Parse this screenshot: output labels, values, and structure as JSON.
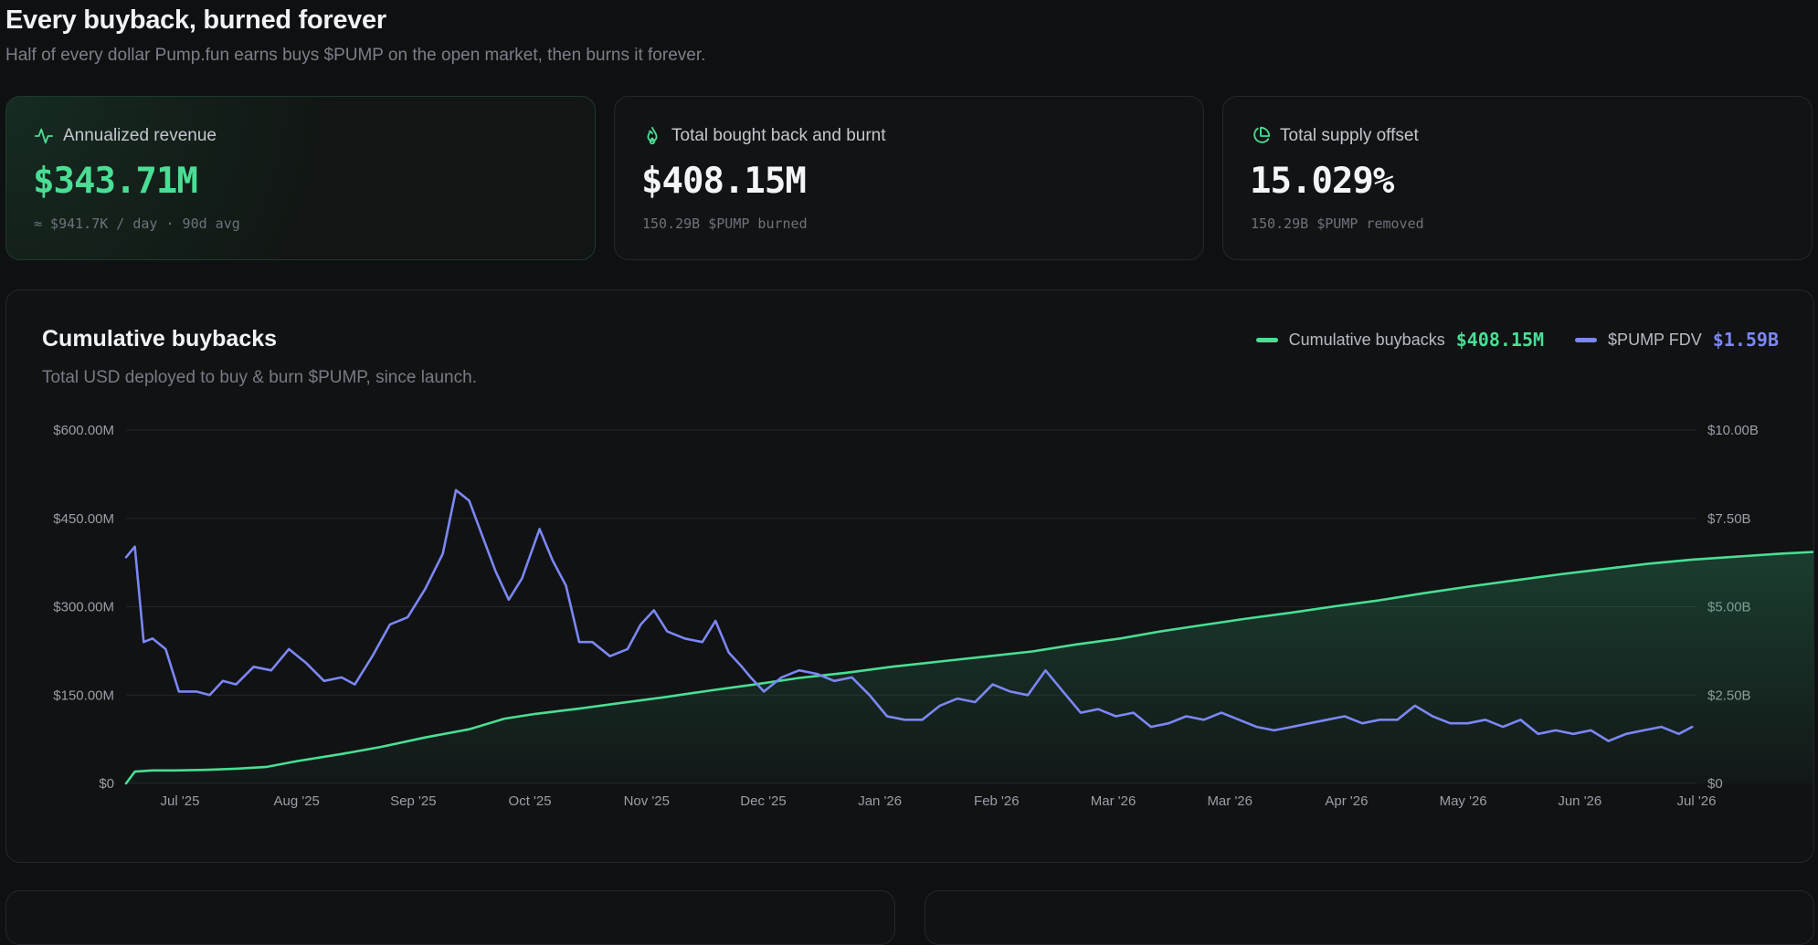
{
  "header": {
    "title": "Every buyback, burned forever",
    "subtitle": "Half of every dollar Pump.fun earns buys $PUMP on the open market, then burns it forever."
  },
  "stats": [
    {
      "label": "Annualized revenue",
      "value": "$343.71M",
      "sub": "≈ $941.7K / day · 90d avg",
      "icon": "activity-pulse-icon"
    },
    {
      "label": "Total bought back and burnt",
      "value": "$408.15M",
      "sub": "150.29B $PUMP burned",
      "icon": "flame-icon"
    },
    {
      "label": "Total supply offset",
      "value": "15.029%",
      "sub": "150.29B $PUMP removed",
      "icon": "pie-chart-icon"
    }
  ],
  "colors": {
    "accent_green": "#4ade94",
    "accent_purple": "#7c87f5",
    "background": "#0f1012",
    "card": "#111214"
  },
  "chart": {
    "title": "Cumulative buybacks",
    "subtitle": "Total USD deployed to buy & burn $PUMP, since launch.",
    "legend": [
      {
        "label": "Cumulative buybacks",
        "value": "$408.15M",
        "color": "#4ade94"
      },
      {
        "label": "$PUMP FDV",
        "value": "$1.59B",
        "color": "#7c87f5"
      }
    ]
  },
  "chart_data": {
    "type": "line",
    "title": "Cumulative buybacks",
    "subtitle": "Total USD deployed to buy & burn $PUMP, since launch.",
    "x_start": "2025-07-14",
    "x_end": "2026-07-06",
    "x_tick_labels": [
      "Jul '25",
      "Aug '25",
      "Sep '25",
      "Oct '25",
      "Nov '25",
      "Dec '25",
      "Jan '26",
      "Feb '26",
      "Mar '26",
      "Mar '26",
      "Apr '26",
      "May '26",
      "Jun '26",
      "Jul '26"
    ],
    "y_left": {
      "ticks": [
        "$0",
        "$150.00M",
        "$300.00M",
        "$450.00M",
        "$600.00M"
      ],
      "lim": [
        0,
        600
      ],
      "unit": "$M"
    },
    "y_right": {
      "ticks": [
        "$0",
        "$2.50B",
        "$5.00B",
        "$7.50B",
        "$10.00B"
      ],
      "lim": [
        0,
        10
      ],
      "unit": "$B"
    },
    "grid": true,
    "legend_position": "top-right",
    "series": [
      {
        "name": "Cumulative buybacks",
        "axis": "left",
        "color": "#4ade94",
        "area": true,
        "points": [
          [
            "2025-07-14",
            0
          ],
          [
            "2025-07-16",
            20
          ],
          [
            "2025-07-20",
            22
          ],
          [
            "2025-07-25",
            22
          ],
          [
            "2025-08-01",
            23
          ],
          [
            "2025-08-08",
            25
          ],
          [
            "2025-08-15",
            28
          ],
          [
            "2025-08-22",
            38
          ],
          [
            "2025-09-01",
            50
          ],
          [
            "2025-09-10",
            62
          ],
          [
            "2025-09-20",
            78
          ],
          [
            "2025-09-30",
            92
          ],
          [
            "2025-10-08",
            110
          ],
          [
            "2025-10-15",
            118
          ],
          [
            "2025-10-25",
            127
          ],
          [
            "2025-11-04",
            137
          ],
          [
            "2025-11-14",
            147
          ],
          [
            "2025-11-24",
            158
          ],
          [
            "2025-12-04",
            168
          ],
          [
            "2025-12-14",
            179
          ],
          [
            "2025-12-25",
            188
          ],
          [
            "2026-01-04",
            198
          ],
          [
            "2026-01-15",
            207
          ],
          [
            "2026-01-25",
            215
          ],
          [
            "2026-02-05",
            224
          ],
          [
            "2026-02-15",
            236
          ],
          [
            "2026-02-25",
            246
          ],
          [
            "2026-03-06",
            258
          ],
          [
            "2026-03-15",
            268
          ],
          [
            "2026-03-25",
            279
          ],
          [
            "2026-04-05",
            290
          ],
          [
            "2026-04-15",
            301
          ],
          [
            "2026-04-25",
            311
          ],
          [
            "2026-05-05",
            323
          ],
          [
            "2026-05-15",
            334
          ],
          [
            "2026-05-25",
            344
          ],
          [
            "2026-06-05",
            355
          ],
          [
            "2026-06-15",
            364
          ],
          [
            "2026-06-25",
            373
          ],
          [
            "2026-07-05",
            380
          ],
          [
            "2026-07-15",
            385
          ],
          [
            "2026-07-25",
            390
          ],
          [
            "2026-08-04",
            394
          ],
          [
            "2026-08-14",
            399
          ],
          [
            "2026-08-24",
            402
          ],
          [
            "2026-09-03",
            405
          ],
          [
            "2026-09-13",
            407
          ],
          [
            "2026-09-20",
            408.15
          ]
        ]
      },
      {
        "name": "$PUMP FDV",
        "axis": "right",
        "color": "#7c87f5",
        "area": false,
        "points": [
          [
            "2025-07-14",
            6.4
          ],
          [
            "2025-07-16",
            6.7
          ],
          [
            "2025-07-18",
            4.0
          ],
          [
            "2025-07-20",
            4.1
          ],
          [
            "2025-07-23",
            3.8
          ],
          [
            "2025-07-26",
            2.6
          ],
          [
            "2025-07-30",
            2.6
          ],
          [
            "2025-08-02",
            2.5
          ],
          [
            "2025-08-05",
            2.9
          ],
          [
            "2025-08-08",
            2.8
          ],
          [
            "2025-08-12",
            3.3
          ],
          [
            "2025-08-16",
            3.2
          ],
          [
            "2025-08-20",
            3.8
          ],
          [
            "2025-08-24",
            3.4
          ],
          [
            "2025-08-28",
            2.9
          ],
          [
            "2025-09-01",
            3.0
          ],
          [
            "2025-09-04",
            2.8
          ],
          [
            "2025-09-08",
            3.6
          ],
          [
            "2025-09-12",
            4.5
          ],
          [
            "2025-09-16",
            4.7
          ],
          [
            "2025-09-20",
            5.5
          ],
          [
            "2025-09-24",
            6.5
          ],
          [
            "2025-09-27",
            8.3
          ],
          [
            "2025-09-30",
            8.0
          ],
          [
            "2025-10-03",
            7.0
          ],
          [
            "2025-10-06",
            6.0
          ],
          [
            "2025-10-09",
            5.2
          ],
          [
            "2025-10-12",
            5.8
          ],
          [
            "2025-10-16",
            7.2
          ],
          [
            "2025-10-19",
            6.3
          ],
          [
            "2025-10-22",
            5.6
          ],
          [
            "2025-10-25",
            4.0
          ],
          [
            "2025-10-28",
            4.0
          ],
          [
            "2025-11-01",
            3.6
          ],
          [
            "2025-11-05",
            3.8
          ],
          [
            "2025-11-08",
            4.5
          ],
          [
            "2025-11-11",
            4.9
          ],
          [
            "2025-11-14",
            4.3
          ],
          [
            "2025-11-18",
            4.1
          ],
          [
            "2025-11-22",
            4.0
          ],
          [
            "2025-11-25",
            4.6
          ],
          [
            "2025-11-28",
            3.7
          ],
          [
            "2025-12-01",
            3.3
          ],
          [
            "2025-12-03",
            3.0
          ],
          [
            "2025-12-06",
            2.6
          ],
          [
            "2025-12-10",
            3.0
          ],
          [
            "2025-12-14",
            3.2
          ],
          [
            "2025-12-18",
            3.1
          ],
          [
            "2025-12-22",
            2.9
          ],
          [
            "2025-12-26",
            3.0
          ],
          [
            "2025-12-30",
            2.5
          ],
          [
            "2026-01-03",
            1.9
          ],
          [
            "2026-01-07",
            1.8
          ],
          [
            "2026-01-11",
            1.8
          ],
          [
            "2026-01-15",
            2.2
          ],
          [
            "2026-01-19",
            2.4
          ],
          [
            "2026-01-23",
            2.3
          ],
          [
            "2026-01-27",
            2.8
          ],
          [
            "2026-01-31",
            2.6
          ],
          [
            "2026-02-04",
            2.5
          ],
          [
            "2026-02-08",
            3.2
          ],
          [
            "2026-02-12",
            2.6
          ],
          [
            "2026-02-16",
            2.0
          ],
          [
            "2026-02-20",
            2.1
          ],
          [
            "2026-02-24",
            1.9
          ],
          [
            "2026-02-28",
            2.0
          ],
          [
            "2026-03-04",
            1.6
          ],
          [
            "2026-03-08",
            1.7
          ],
          [
            "2026-03-12",
            1.9
          ],
          [
            "2026-03-16",
            1.8
          ],
          [
            "2026-03-20",
            2.0
          ],
          [
            "2026-03-24",
            1.8
          ],
          [
            "2026-03-28",
            1.6
          ],
          [
            "2026-04-01",
            1.5
          ],
          [
            "2026-04-05",
            1.6
          ],
          [
            "2026-04-09",
            1.7
          ],
          [
            "2026-04-13",
            1.8
          ],
          [
            "2026-04-17",
            1.9
          ],
          [
            "2026-04-21",
            1.7
          ],
          [
            "2026-04-25",
            1.8
          ],
          [
            "2026-04-29",
            1.8
          ],
          [
            "2026-05-03",
            2.2
          ],
          [
            "2026-05-07",
            1.9
          ],
          [
            "2026-05-11",
            1.7
          ],
          [
            "2026-05-15",
            1.7
          ],
          [
            "2026-05-19",
            1.8
          ],
          [
            "2026-05-23",
            1.6
          ],
          [
            "2026-05-27",
            1.8
          ],
          [
            "2026-05-31",
            1.4
          ],
          [
            "2026-06-04",
            1.5
          ],
          [
            "2026-06-08",
            1.4
          ],
          [
            "2026-06-12",
            1.5
          ],
          [
            "2026-06-16",
            1.2
          ],
          [
            "2026-06-20",
            1.4
          ],
          [
            "2026-06-24",
            1.5
          ],
          [
            "2026-06-28",
            1.6
          ],
          [
            "2026-07-02",
            1.4
          ],
          [
            "2026-07-05",
            1.6
          ]
        ]
      }
    ]
  }
}
